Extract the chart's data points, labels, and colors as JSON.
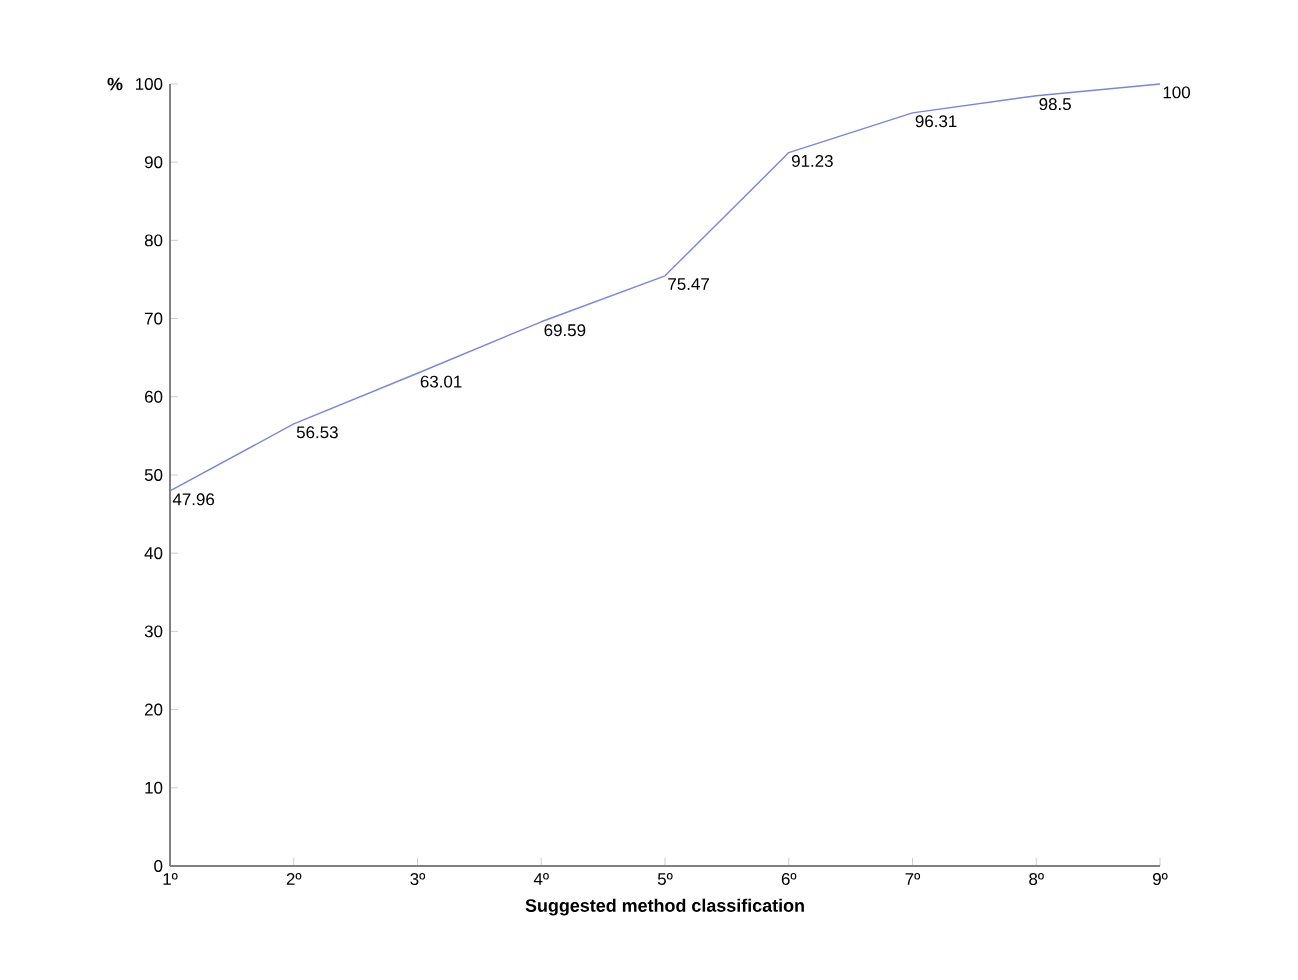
{
  "chart_data": {
    "type": "line",
    "xlabel": "Suggested method classification",
    "ylabel": "%",
    "categories": [
      "1º",
      "2º",
      "3º",
      "4º",
      "5º",
      "6º",
      "7º",
      "8º",
      "9º"
    ],
    "values": [
      47.96,
      56.53,
      63.01,
      69.59,
      75.47,
      91.23,
      96.31,
      98.5,
      100
    ],
    "color": "#7b86d6",
    "data_labels": true,
    "ylim": [
      0,
      100
    ],
    "yticks": [
      0,
      10,
      20,
      30,
      40,
      50,
      60,
      70,
      80,
      90,
      100
    ],
    "grid": false,
    "marker": "none",
    "line_style": "solid"
  }
}
